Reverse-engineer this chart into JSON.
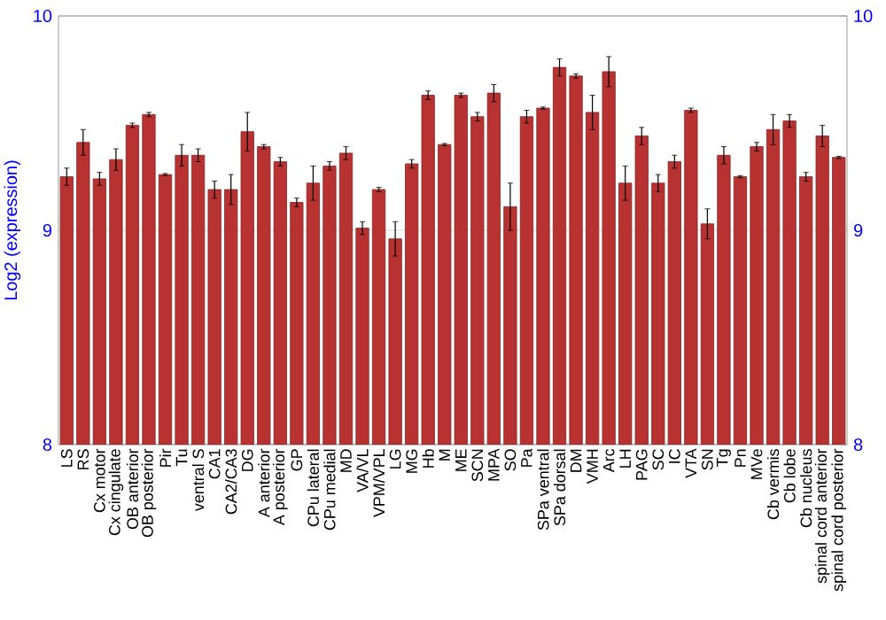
{
  "chart_data": {
    "type": "bar",
    "ylabel": "Log2 (expression)",
    "categories": [
      "LS",
      "RS",
      "Cx motor",
      "Cx cingulate",
      "OB anterior",
      "OB posterior",
      "Pir",
      "Tu",
      "ventral S",
      "CA1",
      "CA2/CA3",
      "DG",
      "A anterior",
      "A posterior",
      "GP",
      "CPu lateral",
      "CPu medial",
      "MD",
      "VA/VL",
      "VPM/VPL",
      "LG",
      "MG",
      "Hb",
      "M",
      "ME",
      "SCN",
      "MPA",
      "SO",
      "Pa",
      "SPa ventral",
      "SPa dorsal",
      "DM",
      "VMH",
      "Arc",
      "LH",
      "PAG",
      "SC",
      "IC",
      "VTA",
      "SN",
      "Tg",
      "Pn",
      "MVe",
      "Cb vermis",
      "Cb lobe",
      "Cb nucleus",
      "spinal cord anterior",
      "spinal cord posterior"
    ],
    "values": [
      9.25,
      9.41,
      9.24,
      9.33,
      9.49,
      9.54,
      9.26,
      9.35,
      9.35,
      9.19,
      9.19,
      9.46,
      9.39,
      9.32,
      9.13,
      9.22,
      9.3,
      9.36,
      9.01,
      9.19,
      8.96,
      9.31,
      9.63,
      9.4,
      9.63,
      9.53,
      9.64,
      9.11,
      9.53,
      9.57,
      9.76,
      9.72,
      9.55,
      9.74,
      9.22,
      9.44,
      9.22,
      9.32,
      9.56,
      9.03,
      9.35,
      9.25,
      9.39,
      9.47,
      9.51,
      9.25,
      9.44,
      9.34
    ],
    "errors": [
      0.04,
      0.06,
      0.03,
      0.05,
      0.01,
      0.01,
      0.005,
      0.05,
      0.03,
      0.04,
      0.07,
      0.09,
      0.01,
      0.02,
      0.02,
      0.08,
      0.02,
      0.03,
      0.03,
      0.01,
      0.08,
      0.02,
      0.02,
      0.005,
      0.01,
      0.02,
      0.04,
      0.11,
      0.03,
      0.005,
      0.04,
      0.01,
      0.08,
      0.07,
      0.08,
      0.04,
      0.04,
      0.03,
      0.01,
      0.07,
      0.04,
      0.005,
      0.02,
      0.07,
      0.03,
      0.02,
      0.05,
      0.005
    ],
    "color": "#b83232",
    "ylim": [
      8,
      10
    ],
    "yticks": [
      8,
      9,
      10
    ],
    "y2lim": [
      8,
      10
    ],
    "y2ticks": [
      8,
      9,
      10
    ],
    "grid": "y"
  }
}
